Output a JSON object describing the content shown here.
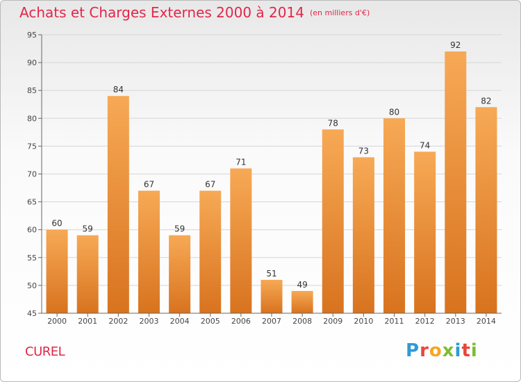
{
  "header": {
    "title": "Achats et Charges Externes 2000 à 2014",
    "unit": "(en milliers d'€)"
  },
  "footer": {
    "commune": "CUREL",
    "brand": "Proxiti",
    "brand_colors": [
      "#2e9ad6",
      "#e8463b",
      "#f6a623",
      "#7cbd31",
      "#2e9ad6",
      "#e8463b",
      "#7cbd31"
    ]
  },
  "chart_data": {
    "type": "bar",
    "title": "Achats et Charges Externes 2000 à 2014",
    "xlabel": "",
    "ylabel": "",
    "categories": [
      "2000",
      "2001",
      "2002",
      "2003",
      "2004",
      "2005",
      "2006",
      "2007",
      "2008",
      "2009",
      "2010",
      "2011",
      "2012",
      "2013",
      "2014"
    ],
    "values": [
      60,
      59,
      84,
      67,
      59,
      67,
      71,
      51,
      49,
      78,
      73,
      80,
      74,
      92,
      82
    ],
    "ylim": [
      45,
      95
    ],
    "yticks": [
      45,
      50,
      55,
      60,
      65,
      70,
      75,
      80,
      85,
      90,
      95
    ],
    "grid": true,
    "bar_color_top": "#f7a955",
    "bar_color_bottom": "#d8731f"
  }
}
